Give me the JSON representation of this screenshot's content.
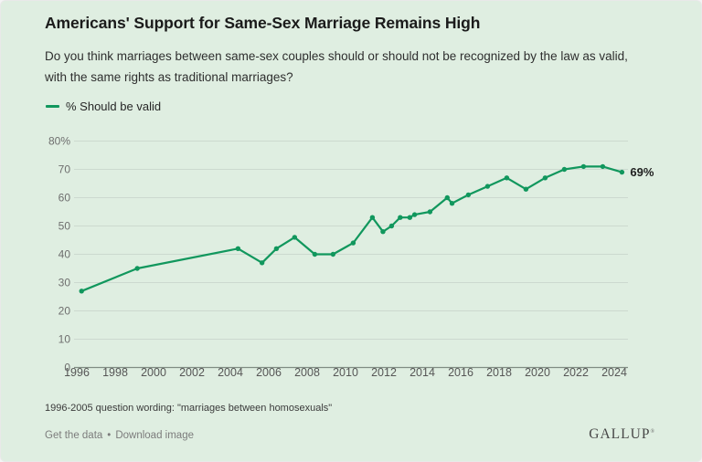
{
  "header": {
    "title": "Americans' Support for Same-Sex Marriage Remains High",
    "question_line1": "Do you think marriages between same-sex couples should or should not be recognized by the law as valid,",
    "question_line2": "with the same rights as traditional marriages?"
  },
  "legend": {
    "label": "% Should be valid"
  },
  "chart_data": {
    "type": "line",
    "title": "Americans' Support for Same-Sex Marriage Remains High",
    "xlabel": "",
    "ylabel": "% should be valid",
    "xlim": [
      1995.6,
      2025.2
    ],
    "ylim": [
      0,
      80
    ],
    "grid": "horizontal",
    "legend_position": "top-left",
    "x_ticks": [
      1996,
      1998,
      2000,
      2002,
      2004,
      2006,
      2008,
      2010,
      2012,
      2014,
      2016,
      2018,
      2020,
      2022,
      2024
    ],
    "y_ticks": [
      0,
      10,
      20,
      30,
      40,
      50,
      60,
      70,
      80
    ],
    "y_top_label": "80%",
    "end_label": "69%",
    "points_format": "[year (decimal = poll date within year), percent should be valid]",
    "series": [
      {
        "name": "% Should be valid",
        "color": "#11975d",
        "points": [
          [
            1996.25,
            27
          ],
          [
            1999.15,
            35
          ],
          [
            2004.4,
            42
          ],
          [
            2005.65,
            37
          ],
          [
            2006.4,
            42
          ],
          [
            2007.35,
            46
          ],
          [
            2008.4,
            40
          ],
          [
            2009.35,
            40
          ],
          [
            2010.4,
            44
          ],
          [
            2011.4,
            53
          ],
          [
            2011.95,
            48
          ],
          [
            2012.4,
            50
          ],
          [
            2012.85,
            53
          ],
          [
            2013.35,
            53
          ],
          [
            2013.6,
            54
          ],
          [
            2014.4,
            55
          ],
          [
            2015.3,
            60
          ],
          [
            2015.55,
            58
          ],
          [
            2016.4,
            61
          ],
          [
            2017.4,
            64
          ],
          [
            2018.4,
            67
          ],
          [
            2019.4,
            63
          ],
          [
            2020.4,
            67
          ],
          [
            2021.4,
            70
          ],
          [
            2022.4,
            71
          ],
          [
            2023.4,
            71
          ],
          [
            2024.4,
            69
          ]
        ]
      }
    ]
  },
  "footer": {
    "note": "1996-2005 question wording: \"marriages between homosexuals\"",
    "get_data": "Get the data",
    "bullet": "•",
    "download": "Download image",
    "logo": "GALLUP",
    "logo_mark": "®"
  },
  "colors": {
    "background": "#dfeee1",
    "line": "#11975d",
    "grid": "#ccd9cf",
    "axis": "#7f8c82",
    "y_tick_label": "#6e6e6e",
    "x_tick_label": "#565656",
    "end_label": "#1f1f1f"
  }
}
